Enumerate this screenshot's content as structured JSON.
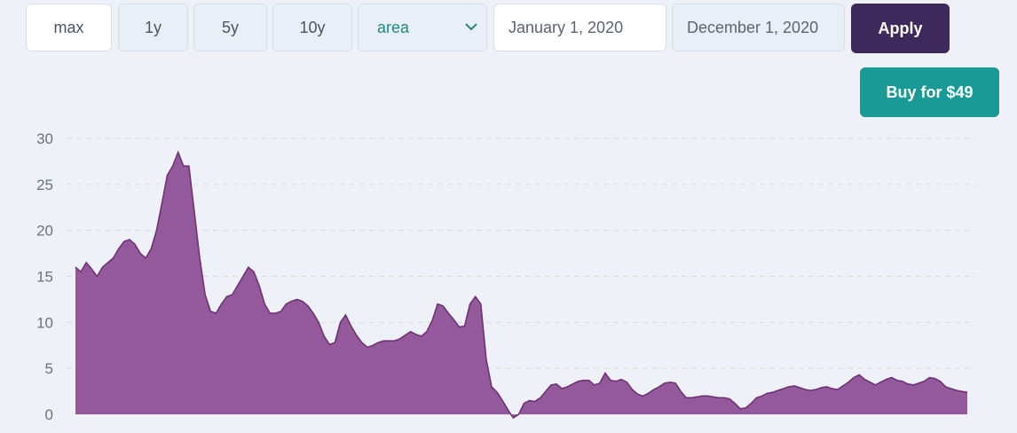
{
  "range_buttons": [
    "max",
    "1y",
    "5y",
    "10y"
  ],
  "chart_type_select": {
    "value": "area"
  },
  "start_date": "January 1, 2020",
  "end_date": "December 1, 2020",
  "apply_label": "Apply",
  "buy_label": "Buy for $49",
  "colors": {
    "area_fill": "#93599b",
    "area_stroke": "#6a2f73",
    "apply_bg": "#3e2a5a",
    "buy_bg": "#1a9a96"
  },
  "chart_data": {
    "type": "area",
    "title": "",
    "xlabel": "",
    "ylabel": "",
    "ylim": [
      0,
      30
    ],
    "yticks": [
      0,
      5,
      10,
      15,
      20,
      25,
      30
    ],
    "grid": "horizontal dashed",
    "legend": "none",
    "series": [
      {
        "values": [
          16,
          15.5,
          16.5,
          15.8,
          15,
          16,
          16.5,
          17,
          18,
          18.8,
          19,
          18.5,
          17.5,
          17,
          18,
          20,
          23,
          26,
          27,
          28.5,
          27,
          27,
          22,
          17,
          13,
          11.2,
          11,
          12,
          12.8,
          13,
          14,
          15,
          16,
          15.5,
          14,
          12,
          11,
          11,
          11.2,
          12,
          12.3,
          12.5,
          12.3,
          11.8,
          11,
          10,
          8.5,
          7.6,
          7.8,
          10,
          10.8,
          9.6,
          8.6,
          7.8,
          7.3,
          7.5,
          7.8,
          8,
          8,
          8,
          8.2,
          8.6,
          9,
          8.7,
          8.5,
          9,
          10.2,
          12,
          11.8,
          11,
          10.3,
          9.5,
          9.6,
          12,
          12.8,
          12,
          6,
          3,
          2.4,
          1.5,
          0.5,
          -0.4,
          0,
          1.2,
          1.5,
          1.4,
          1.8,
          2.5,
          3.2,
          3.3,
          2.8,
          3,
          3.3,
          3.6,
          3.7,
          3.7,
          3.2,
          3.4,
          4.5,
          3.7,
          3.6,
          3.8,
          3.5,
          2.7,
          2.2,
          2,
          2.3,
          2.7,
          3,
          3.4,
          3.5,
          3.4,
          2.5,
          1.8,
          1.8,
          1.9,
          2,
          2,
          1.9,
          1.8,
          1.8,
          1.7,
          1.2,
          0.6,
          0.7,
          1.2,
          1.8,
          2,
          2.3,
          2.4,
          2.6,
          2.8,
          3,
          3.1,
          2.9,
          2.7,
          2.6,
          2.7,
          2.9,
          3,
          2.8,
          2.7,
          3.1,
          3.5,
          4,
          4.3,
          3.8,
          3.5,
          3.2,
          3.5,
          3.8,
          4,
          3.7,
          3.6,
          3.3,
          3.2,
          3.4,
          3.6,
          4,
          3.9,
          3.6,
          3,
          2.8,
          2.6,
          2.5,
          2.4
        ]
      }
    ]
  }
}
